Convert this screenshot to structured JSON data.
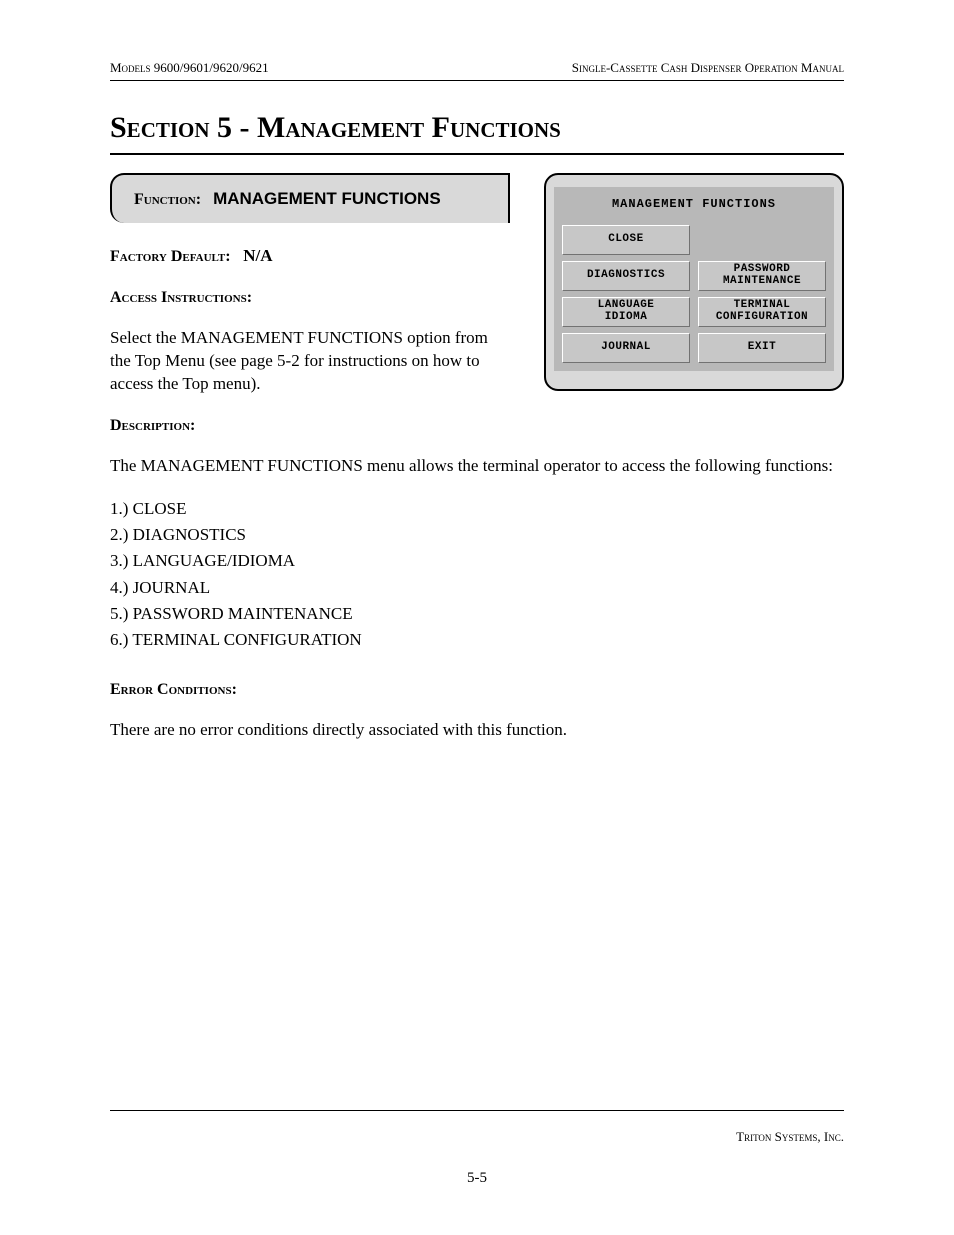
{
  "header": {
    "left": "Models 9600/9601/9620/9621",
    "right": "Single-Cassette Cash Dispenser Operation Manual"
  },
  "section_title": "Section 5 - Management Functions",
  "function_box": {
    "label": "Function:",
    "value": "MANAGEMENT FUNCTIONS"
  },
  "screen": {
    "title": "MANAGEMENT FUNCTIONS",
    "buttons": [
      [
        "CLOSE",
        ""
      ],
      [
        "DIAGNOSTICS",
        "PASSWORD\nMAINTENANCE"
      ],
      [
        "LANGUAGE\nIDIOMA",
        "TERMINAL\nCONFIGURATION"
      ],
      [
        "JOURNAL",
        "EXIT"
      ]
    ],
    "colors": {
      "panel_bg": "#d9d9d9",
      "inner_bg": "#b8b8b8",
      "btn_bg": "#c7c7c7",
      "btn_light": "#ffffff",
      "btn_dark": "#727272",
      "text": "#000000"
    }
  },
  "fields": {
    "factory_default_label": "Factory Default:",
    "factory_default_value": "N/A",
    "access_label": "Access Instructions:",
    "access_text": "Select the MANAGEMENT FUNCTIONS option from the Top Menu (see page 5-2 for instructions on how to access the Top menu).",
    "description_label": "Description:",
    "description_text": "The MANAGEMENT FUNCTIONS menu allows the terminal operator to access the following functions:",
    "error_label": "Error Conditions:",
    "error_text": "There are no error conditions directly associated with this function."
  },
  "list": [
    "CLOSE",
    "DIAGNOSTICS",
    "LANGUAGE/IDIOMA",
    "JOURNAL",
    "PASSWORD MAINTENANCE",
    "TERMINAL CONFIGURATION"
  ],
  "footer": {
    "company": "Triton Systems, Inc.",
    "page": "5-5"
  }
}
